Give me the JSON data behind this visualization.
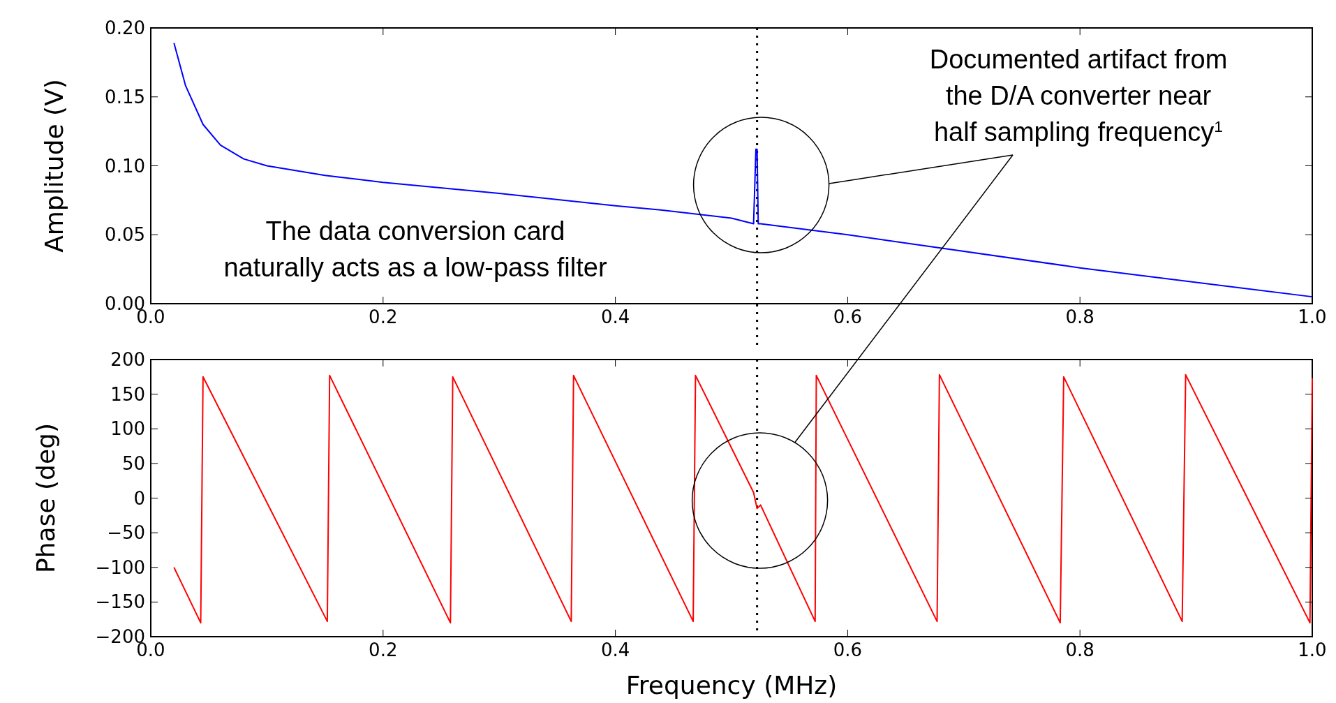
{
  "chart_data": [
    {
      "type": "line",
      "ylabel": "Amplitude (V)",
      "xlim": [
        0,
        1
      ],
      "xticks": [
        {
          "value": 0,
          "label": "0.0"
        },
        {
          "value": 0.2,
          "label": "0.2"
        },
        {
          "value": 0.4,
          "label": "0.4"
        },
        {
          "value": 0.6,
          "label": "0.6"
        },
        {
          "value": 0.8,
          "label": "0.8"
        },
        {
          "value": 1,
          "label": "1.0"
        }
      ],
      "ylim": [
        0,
        0.2
      ],
      "yticks": [
        {
          "value": 0,
          "label": "0.00"
        },
        {
          "value": 0.05,
          "label": "0.05"
        },
        {
          "value": 0.1,
          "label": "0.10"
        },
        {
          "value": 0.15,
          "label": "0.15"
        },
        {
          "value": 0.2,
          "label": "0.20"
        }
      ],
      "grid": false,
      "marker": "none",
      "line_style": "solid",
      "series": [
        {
          "color": "#0000ff",
          "x": [
            0.02,
            0.03,
            0.045,
            0.06,
            0.08,
            0.1,
            0.15,
            0.2,
            0.3,
            0.4,
            0.439,
            0.5,
            0.519,
            0.521,
            0.522,
            0.523,
            0.525,
            0.6,
            0.8,
            1.0
          ],
          "values": [
            0.189,
            0.158,
            0.13,
            0.115,
            0.105,
            0.1,
            0.093,
            0.088,
            0.08,
            0.071,
            0.068,
            0.062,
            0.058,
            0.112,
            0.112,
            0.058,
            0.058,
            0.05,
            0.026,
            0.005
          ]
        }
      ],
      "ref_lines": [
        {
          "axis": "x",
          "value": 0.522,
          "color": "#000000",
          "line_style": "dotted"
        }
      ],
      "annotations": [
        "The data conversion card\nnaturally acts as a low-pass filter",
        "Documented artifact from\nthe D/A converter near\nhalf sampling frequency$^{1}$"
      ]
    },
    {
      "type": "line",
      "xlabel": "Frequency (MHz)",
      "ylabel": "Phase (deg)",
      "xlim": [
        0,
        1
      ],
      "xticks": [
        {
          "value": 0,
          "label": "0.0"
        },
        {
          "value": 0.2,
          "label": "0.2"
        },
        {
          "value": 0.4,
          "label": "0.4"
        },
        {
          "value": 0.6,
          "label": "0.6"
        },
        {
          "value": 0.8,
          "label": "0.8"
        },
        {
          "value": 1,
          "label": "1.0"
        }
      ],
      "ylim": [
        -200,
        200
      ],
      "yticks": [
        {
          "value": -200,
          "label": "−200"
        },
        {
          "value": -150,
          "label": "−150"
        },
        {
          "value": -100,
          "label": "−100"
        },
        {
          "value": -50,
          "label": "−50"
        },
        0,
        50,
        100,
        150,
        200
      ],
      "grid": false,
      "marker": "none",
      "line_style": "solid",
      "series": [
        {
          "color": "#ff0000",
          "x": [
            0.02,
            0.043,
            0.045,
            0.152,
            0.154,
            0.258,
            0.26,
            0.362,
            0.364,
            0.467,
            0.469,
            0.519,
            0.522,
            0.525,
            0.572,
            0.573,
            0.677,
            0.679,
            0.783,
            0.786,
            0.888,
            0.891,
            0.998,
            1.0
          ],
          "values": [
            -100,
            -180,
            175,
            -178,
            177,
            -180,
            175,
            -178,
            177,
            -178,
            177,
            8,
            -15,
            -10,
            -178,
            177,
            -178,
            178,
            -180,
            175,
            -178,
            178,
            -180,
            173
          ]
        }
      ],
      "ref_lines": [
        {
          "axis": "x",
          "value": 0.522,
          "color": "#000000",
          "line_style": "dotted"
        }
      ]
    }
  ]
}
